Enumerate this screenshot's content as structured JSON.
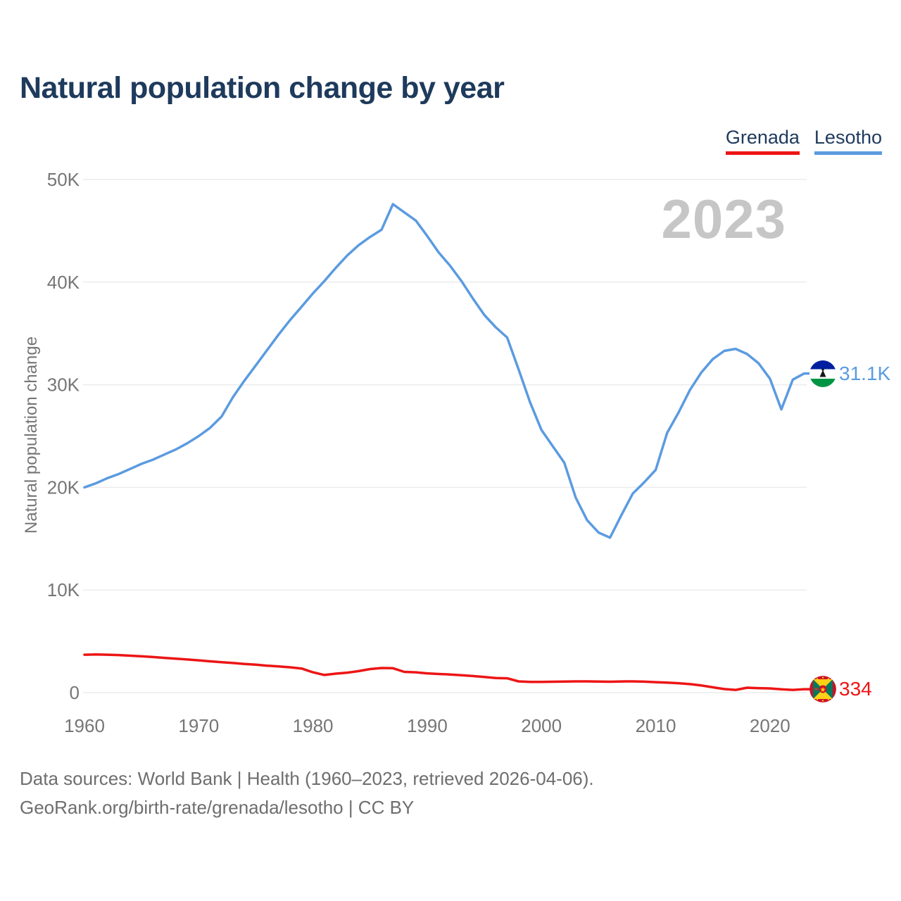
{
  "title": "Natural population change by year",
  "watermark": "2023",
  "legend": {
    "items": [
      {
        "label": "Grenada",
        "color": "#ed1515"
      },
      {
        "label": "Lesotho",
        "color": "#5b9be0"
      }
    ]
  },
  "footer": {
    "line1": "Data sources: World Bank | Health (1960–2023, retrieved 2026-04-06).",
    "line2": "GeoRank.org/birth-rate/grenada/lesotho | CC BY"
  },
  "chart_data": {
    "type": "line",
    "title": "Natural population change by year",
    "ylabel": "Natural population change",
    "xlabel": "",
    "grid": "horizontal",
    "legend_position": "top-right",
    "x_start": 1960,
    "x_end": 2023,
    "x_ticks": [
      1960,
      1970,
      1980,
      1990,
      2000,
      2010,
      2020
    ],
    "ylim": [
      0,
      50000
    ],
    "y_ticks": [
      {
        "value": 0,
        "label": "0"
      },
      {
        "value": 10000,
        "label": "10K"
      },
      {
        "value": 20000,
        "label": "20K"
      },
      {
        "value": 30000,
        "label": "30K"
      },
      {
        "value": 40000,
        "label": "40K"
      },
      {
        "value": 50000,
        "label": "50K"
      }
    ],
    "current_year_indicator": "2023",
    "series": [
      {
        "name": "Lesotho",
        "color": "#5b9be0",
        "end_label": "31.1K",
        "end_value": 31100,
        "flag": "lesotho",
        "values": [
          20000,
          20400,
          20900,
          21300,
          21800,
          22300,
          22700,
          23200,
          23700,
          24300,
          25000,
          25800,
          26900,
          28800,
          30400,
          31900,
          33400,
          34900,
          36300,
          37600,
          38900,
          40100,
          41400,
          42600,
          43600,
          44400,
          45100,
          47600,
          46800,
          46000,
          44500,
          42900,
          41600,
          40100,
          38400,
          36800,
          35600,
          34600,
          31500,
          28300,
          25600,
          24000,
          22400,
          19000,
          16800,
          15600,
          15100,
          17300,
          19400,
          20500,
          21700,
          25300,
          27300,
          29500,
          31200,
          32500,
          33300,
          33500,
          33000,
          32100,
          30600,
          27600,
          30500,
          31100
        ]
      },
      {
        "name": "Grenada",
        "color": "#ed1515",
        "end_label": "334",
        "end_value": 334,
        "flag": "grenada",
        "values": [
          3700,
          3720,
          3700,
          3660,
          3600,
          3540,
          3470,
          3390,
          3310,
          3230,
          3150,
          3050,
          2960,
          2890,
          2800,
          2720,
          2630,
          2560,
          2470,
          2350,
          1980,
          1720,
          1850,
          1950,
          2100,
          2300,
          2400,
          2380,
          2020,
          1980,
          1880,
          1820,
          1770,
          1700,
          1620,
          1530,
          1430,
          1400,
          1100,
          1050,
          1050,
          1060,
          1080,
          1100,
          1100,
          1080,
          1060,
          1090,
          1100,
          1070,
          1020,
          980,
          920,
          830,
          700,
          520,
          350,
          270,
          480,
          440,
          410,
          330,
          270,
          334
        ]
      }
    ]
  }
}
